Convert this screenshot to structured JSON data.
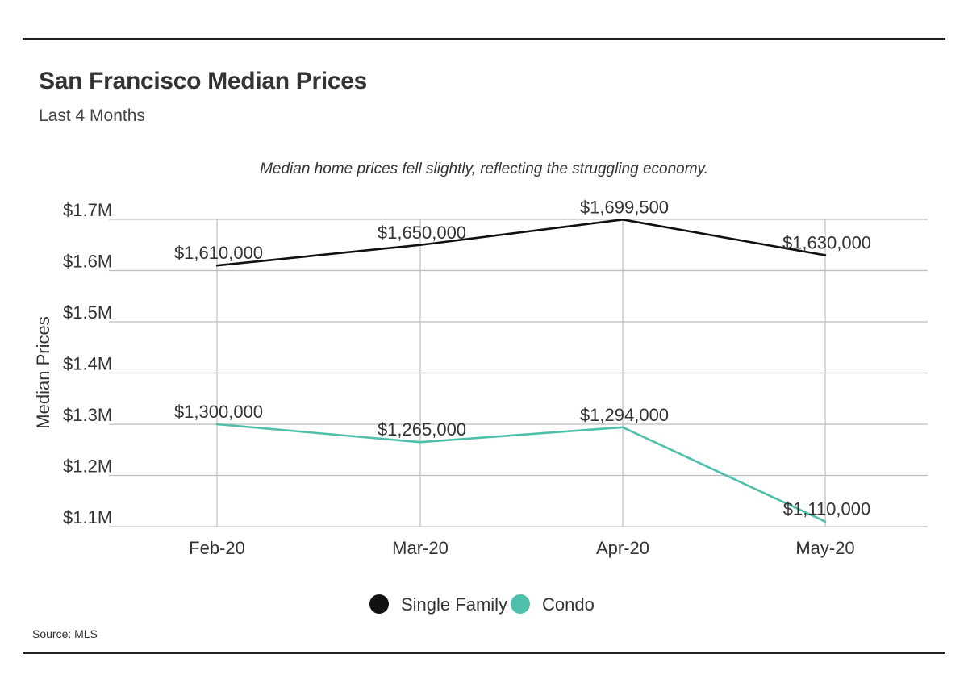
{
  "header": {
    "title": "San Francisco Median Prices",
    "subtitle": "Last 4 Months"
  },
  "footer": {
    "source": "Source: MLS"
  },
  "chart_data": {
    "type": "line",
    "annotation": "Median home prices fell slightly, reflecting the struggling economy.",
    "ylabel": "Median Prices",
    "xlabel": "",
    "categories": [
      "Feb-20",
      "Mar-20",
      "Apr-20",
      "May-20"
    ],
    "ylim": [
      1100000,
      1700000
    ],
    "yticks": [
      1100000,
      1200000,
      1300000,
      1400000,
      1500000,
      1600000,
      1700000
    ],
    "ytick_labels": [
      "$1.1M",
      "$1.2M",
      "$1.3M",
      "$1.4M",
      "$1.5M",
      "$1.6M",
      "$1.7M"
    ],
    "grid": true,
    "legend_position": "bottom-center",
    "series": [
      {
        "name": "Single Family",
        "color": "#111111",
        "values": [
          1610000,
          1650000,
          1699500,
          1630000
        ],
        "labels": [
          "$1,610,000",
          "$1,650,000",
          "$1,699,500",
          "$1,630,000"
        ]
      },
      {
        "name": "Condo",
        "color": "#4dbfaa",
        "values": [
          1300000,
          1265000,
          1294000,
          1110000
        ],
        "labels": [
          "$1,300,000",
          "$1,265,000",
          "$1,294,000",
          "$1,110,000"
        ]
      }
    ]
  }
}
